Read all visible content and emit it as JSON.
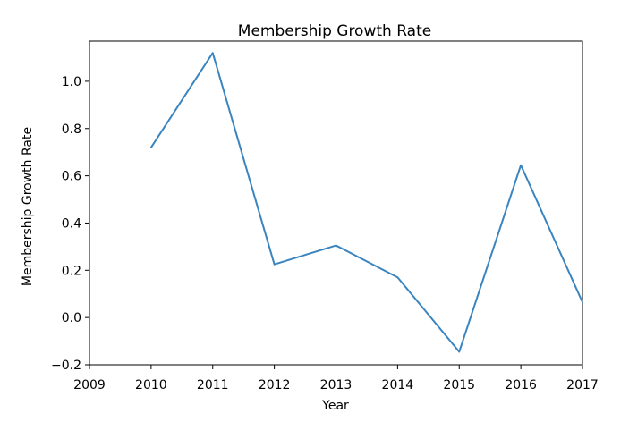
{
  "chart_data": {
    "type": "line",
    "title": "Membership Growth Rate",
    "xlabel": "Year",
    "ylabel": "Membership Growth Rate",
    "xlim": [
      2009,
      2017
    ],
    "ylim": [
      -0.2,
      1.17
    ],
    "xticks": [
      "2009",
      "2010",
      "2011",
      "2012",
      "2013",
      "2014",
      "2015",
      "2016",
      "2017"
    ],
    "yticks": [
      "−0.2",
      "0.0",
      "0.2",
      "0.4",
      "0.6",
      "0.8",
      "1.0"
    ],
    "grid": false,
    "series": [
      {
        "color": "#3a85c0",
        "x": [
          2010,
          2011,
          2012,
          2013,
          2014,
          2015,
          2016,
          2017
        ],
        "y": [
          0.72,
          1.12,
          0.225,
          0.305,
          0.17,
          -0.145,
          0.645,
          0.065
        ]
      }
    ]
  }
}
